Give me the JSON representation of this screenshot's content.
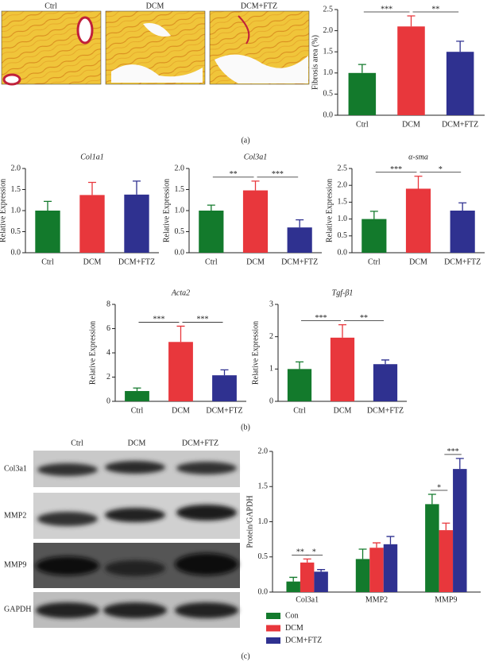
{
  "figure": {
    "panel_labels": [
      "(a)",
      "(b)",
      "(c)"
    ],
    "histology_labels": [
      "Ctrl",
      "DCM",
      "DCM+FTZ"
    ],
    "blot_columns": [
      "Ctrl",
      "DCM",
      "DCM+FTZ"
    ],
    "blot_rows": [
      "Col3a1",
      "MMP2",
      "MMP9",
      "GAPDH"
    ]
  },
  "chart_data": [
    {
      "type": "bar",
      "ylabel": "Fibrosis area (%)",
      "categories": [
        "Ctrl",
        "DCM",
        "DCM+FTZ"
      ],
      "values": [
        1.0,
        2.1,
        1.5
      ],
      "errors": [
        0.2,
        0.25,
        0.25
      ],
      "colors": [
        "#137a2c",
        "#e8373c",
        "#2f3190"
      ],
      "ylim": [
        0,
        2.5
      ],
      "yticks": [
        {
          "value": 0,
          "label": "0.0"
        },
        0.5,
        {
          "value": 1,
          "label": "1.0"
        },
        1.5,
        {
          "value": 2,
          "label": "2.0"
        },
        2.5
      ],
      "annotations": [
        "***",
        "**"
      ]
    },
    {
      "type": "bar",
      "title": "Col1a1",
      "ylabel": "Relative Expression",
      "categories": [
        "Ctrl",
        "DCM",
        "DCM+FTZ"
      ],
      "values": [
        1.0,
        1.37,
        1.38
      ],
      "errors": [
        0.22,
        0.3,
        0.32
      ],
      "colors": [
        "#137a2c",
        "#e8373c",
        "#2f3190"
      ],
      "ylim": [
        0,
        2.0
      ],
      "yticks": [
        {
          "value": 0,
          "label": "0.0"
        },
        0.5,
        {
          "value": 1,
          "label": "1.0"
        },
        1.5,
        {
          "value": 2,
          "label": "2.0"
        }
      ],
      "annotations": []
    },
    {
      "type": "bar",
      "title": "Col3a1",
      "ylabel": "Relative Expression",
      "categories": [
        "Ctrl",
        "DCM",
        "DCM+FTZ"
      ],
      "values": [
        1.0,
        1.48,
        0.6
      ],
      "errors": [
        0.13,
        0.22,
        0.18
      ],
      "colors": [
        "#137a2c",
        "#e8373c",
        "#2f3190"
      ],
      "ylim": [
        0,
        2.0
      ],
      "yticks": [
        {
          "value": 0,
          "label": "0.0"
        },
        0.5,
        {
          "value": 1,
          "label": "1.0"
        },
        1.5,
        {
          "value": 2,
          "label": "2.0"
        }
      ],
      "annotations": [
        "**",
        "***"
      ]
    },
    {
      "type": "bar",
      "title": "α-sma",
      "ylabel": "Relative Expression",
      "categories": [
        "Ctrl",
        "DCM",
        "DCM+FTZ"
      ],
      "values": [
        1.0,
        1.9,
        1.25
      ],
      "errors": [
        0.23,
        0.37,
        0.23
      ],
      "colors": [
        "#137a2c",
        "#e8373c",
        "#2f3190"
      ],
      "ylim": [
        0,
        2.5
      ],
      "yticks": [
        {
          "value": 0,
          "label": "0.0"
        },
        0.5,
        {
          "value": 1,
          "label": "1.0"
        },
        1.5,
        {
          "value": 2,
          "label": "2.0"
        },
        2.5
      ],
      "annotations": [
        "***",
        "*"
      ]
    },
    {
      "type": "bar",
      "title": "Acta2",
      "ylabel": "Relative Expression",
      "categories": [
        "Ctrl",
        "DCM",
        "DCM+FTZ"
      ],
      "values": [
        0.85,
        4.9,
        2.15
      ],
      "errors": [
        0.25,
        1.3,
        0.45
      ],
      "colors": [
        "#137a2c",
        "#e8373c",
        "#2f3190"
      ],
      "ylim": [
        0,
        8
      ],
      "yticks": [
        0,
        2,
        4,
        6,
        8
      ],
      "annotations": [
        "***",
        "***"
      ]
    },
    {
      "type": "bar",
      "title": "Tgf-β1",
      "ylabel": "Relative Expression",
      "categories": [
        "Ctrl",
        "DCM",
        "DCM+FTZ"
      ],
      "values": [
        1.0,
        1.97,
        1.15
      ],
      "errors": [
        0.22,
        0.4,
        0.13
      ],
      "colors": [
        "#137a2c",
        "#e8373c",
        "#2f3190"
      ],
      "ylim": [
        0,
        3
      ],
      "yticks": [
        0,
        1,
        2,
        3
      ],
      "annotations": [
        "***",
        "**"
      ]
    },
    {
      "type": "grouped_bar",
      "ylabel": "Protein/GAPDH",
      "categories": [
        "Col3a1",
        "MMP2",
        "MMP9"
      ],
      "series": [
        {
          "name": "Con",
          "color": "#137a2c",
          "values": [
            0.15,
            0.47,
            1.25
          ],
          "errors": [
            0.06,
            0.14,
            0.14
          ]
        },
        {
          "name": "DCM",
          "color": "#e8373c",
          "values": [
            0.42,
            0.63,
            0.88
          ],
          "errors": [
            0.05,
            0.07,
            0.1
          ]
        },
        {
          "name": "DCM+FTZ",
          "color": "#2f3190",
          "values": [
            0.29,
            0.68,
            1.75
          ],
          "errors": [
            0.03,
            0.11,
            0.15
          ]
        }
      ],
      "ylim": [
        0,
        2.0
      ],
      "yticks": [
        {
          "value": 0,
          "label": "0.0"
        },
        0.5,
        {
          "value": 1,
          "label": "1.0"
        },
        1.5,
        {
          "value": 2,
          "label": "2.0"
        }
      ],
      "annotations": [
        [
          "**",
          "*"
        ],
        [],
        [
          "*",
          "***"
        ]
      ]
    }
  ]
}
